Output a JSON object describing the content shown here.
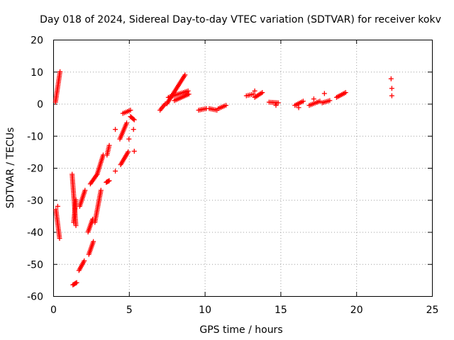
{
  "chart_data": {
    "type": "scatter",
    "title": "Day 018 of 2024, Sidereal Day-to-day VTEC variation (SDTVAR) for receiver kokv",
    "xlabel": "GPS time / hours",
    "ylabel": "SDTVAR / TECUs",
    "xlim": [
      0,
      25
    ],
    "ylim": [
      -60,
      20
    ],
    "xticks": [
      "0",
      "5",
      "10",
      "15",
      "20",
      "25"
    ],
    "yticks": [
      "-60",
      "-50",
      "-40",
      "-30",
      "-20",
      "-10",
      "0",
      "10",
      "20"
    ],
    "grid": true,
    "marker": "plus",
    "color": "#ff0000",
    "segments": [
      {
        "x": [
          0.15,
          0.45
        ],
        "y": [
          0.5,
          10.0
        ]
      },
      {
        "x": [
          0.18,
          0.42
        ],
        "y": [
          -33,
          -42
        ]
      },
      {
        "x": [
          1.25,
          1.5
        ],
        "y": [
          -22,
          -38
        ]
      },
      {
        "x": [
          1.3,
          1.55
        ],
        "y": [
          -56.5,
          -55.8
        ]
      },
      {
        "x": [
          1.35,
          1.5
        ],
        "y": [
          -37,
          -30
        ]
      },
      {
        "x": [
          1.7,
          2.05
        ],
        "y": [
          -52,
          -49
        ]
      },
      {
        "x": [
          1.75,
          2.1
        ],
        "y": [
          -32,
          -27
        ]
      },
      {
        "x": [
          2.35,
          2.65
        ],
        "y": [
          -47,
          -43
        ]
      },
      {
        "x": [
          2.3,
          2.6
        ],
        "y": [
          -40,
          -36
        ]
      },
      {
        "x": [
          2.45,
          2.9
        ],
        "y": [
          -25,
          -22
        ]
      },
      {
        "x": [
          2.75,
          3.15
        ],
        "y": [
          -37,
          -27
        ]
      },
      {
        "x": [
          2.9,
          3.3
        ],
        "y": [
          -22,
          -16
        ]
      },
      {
        "x": [
          3.55,
          3.7
        ],
        "y": [
          -16,
          -13
        ]
      },
      {
        "x": [
          3.5,
          3.7
        ],
        "y": [
          -24.5,
          -24
        ]
      },
      {
        "x": [
          4.4,
          4.85
        ],
        "y": [
          -11,
          -6
        ]
      },
      {
        "x": [
          4.45,
          4.95
        ],
        "y": [
          -19,
          -15
        ]
      },
      {
        "x": [
          4.6,
          5.1
        ],
        "y": [
          -3,
          -2
        ]
      },
      {
        "x": [
          5.1,
          5.35
        ],
        "y": [
          -4,
          -5
        ]
      },
      {
        "x": [
          7.05,
          7.4
        ],
        "y": [
          -2,
          0
        ]
      },
      {
        "x": [
          7.5,
          8.7
        ],
        "y": [
          0,
          9
        ]
      },
      {
        "x": [
          7.6,
          8.9
        ],
        "y": [
          2,
          4
        ]
      },
      {
        "x": [
          8.0,
          8.95
        ],
        "y": [
          1,
          3
        ]
      },
      {
        "x": [
          9.6,
          10.1
        ],
        "y": [
          -2,
          -1.5
        ]
      },
      {
        "x": [
          10.3,
          10.8
        ],
        "y": [
          -1.5,
          -2
        ]
      },
      {
        "x": [
          10.9,
          11.4
        ],
        "y": [
          -1.5,
          -0.5
        ]
      },
      {
        "x": [
          12.75,
          13.2
        ],
        "y": [
          2.5,
          3
        ]
      },
      {
        "x": [
          13.3,
          13.8
        ],
        "y": [
          2,
          3.5
        ]
      },
      {
        "x": [
          14.25,
          14.85
        ],
        "y": [
          0.5,
          0.3
        ]
      },
      {
        "x": [
          15.95,
          16.5
        ],
        "y": [
          -0.5,
          0.8
        ]
      },
      {
        "x": [
          16.9,
          17.6
        ],
        "y": [
          -0.5,
          0.8
        ]
      },
      {
        "x": [
          17.75,
          18.25
        ],
        "y": [
          0.3,
          1
        ]
      },
      {
        "x": [
          18.7,
          19.3
        ],
        "y": [
          2,
          3.5
        ]
      }
    ],
    "points": [
      [
        0.3,
        -32
      ],
      [
        4.1,
        -8
      ],
      [
        4.1,
        -21
      ],
      [
        5.3,
        -8
      ],
      [
        5.35,
        -14.8
      ],
      [
        5.0,
        -11
      ],
      [
        13.3,
        4
      ],
      [
        14.7,
        -0.5
      ],
      [
        17.9,
        3.2
      ],
      [
        17.2,
        1.5
      ],
      [
        22.3,
        7.8
      ],
      [
        22.35,
        4.8
      ],
      [
        22.35,
        2.5
      ],
      [
        16.2,
        -1.2
      ]
    ]
  }
}
